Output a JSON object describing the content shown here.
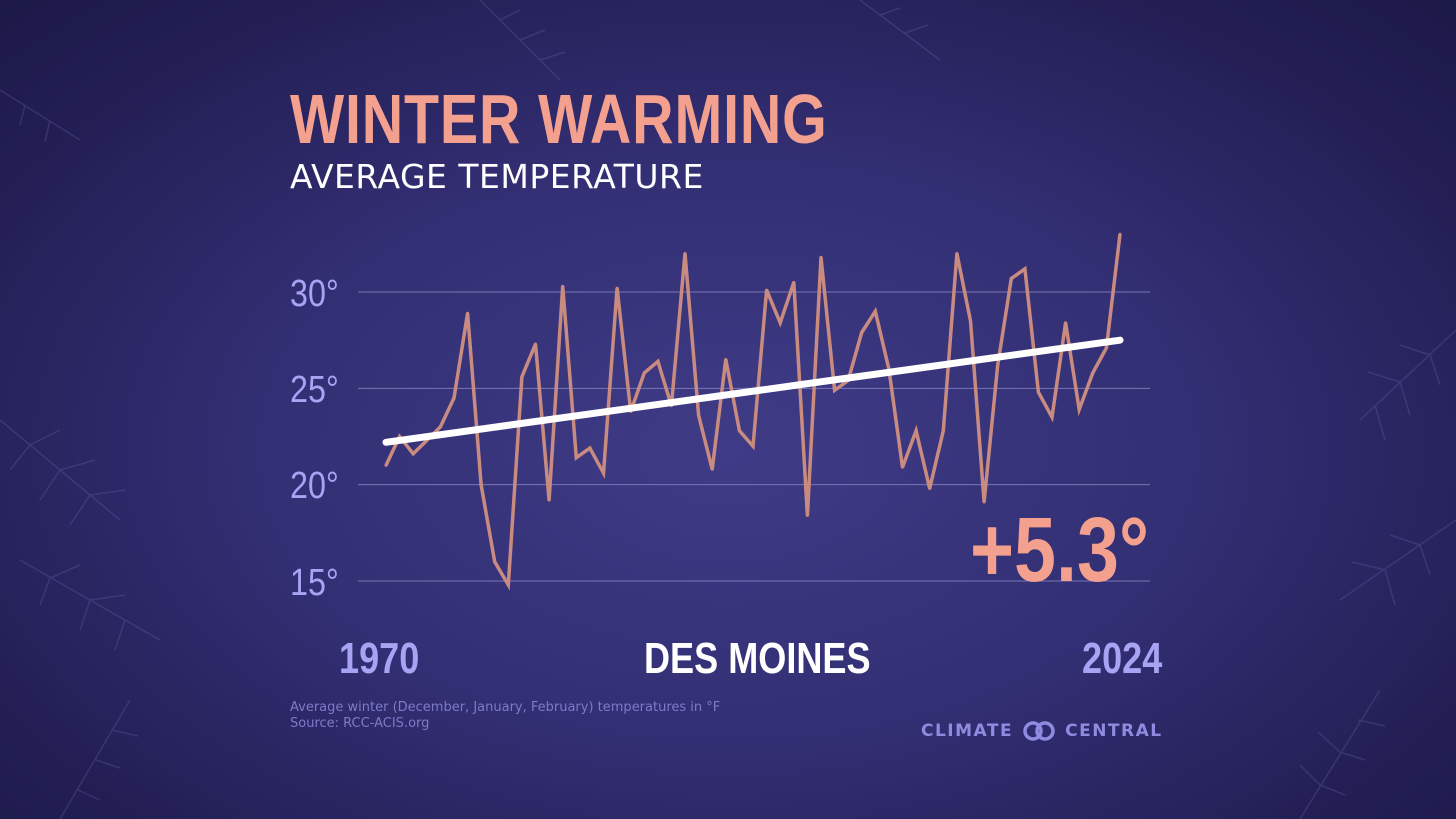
{
  "header": {
    "title": "WINTER WARMING",
    "subtitle": "AVERAGE TEMPERATURE"
  },
  "location": "DES MOINES",
  "change_label": "+5.3°",
  "footnote": {
    "line1": "Average winter (December, January, February) temperatures in °F",
    "line2": "Source: RCC-ACIS.org"
  },
  "brand": {
    "left": "CLIMATE",
    "right": "CENTRAL"
  },
  "colors": {
    "background": "#332f74",
    "title": "#f4a08f",
    "series_line": "#c98b80",
    "trend_line": "#ffffff",
    "axis_text": "#a7a4f4",
    "gridline": "#8f8cc6"
  },
  "chart_data": {
    "type": "line",
    "title": "WINTER WARMING",
    "subtitle": "AVERAGE TEMPERATURE",
    "x_start_label": "1970",
    "x_end_label": "2024",
    "xlim": [
      1970,
      2024
    ],
    "ylim": [
      15,
      30
    ],
    "y_ticks": [
      30,
      25,
      20,
      15
    ],
    "y_tick_labels": [
      "30°",
      "25°",
      "20°",
      "15°"
    ],
    "grid": true,
    "x": [
      1970,
      1971,
      1972,
      1973,
      1974,
      1975,
      1976,
      1977,
      1978,
      1979,
      1980,
      1981,
      1982,
      1983,
      1984,
      1985,
      1986,
      1987,
      1988,
      1989,
      1990,
      1991,
      1992,
      1993,
      1994,
      1995,
      1996,
      1997,
      1998,
      1999,
      2000,
      2001,
      2002,
      2003,
      2004,
      2005,
      2006,
      2007,
      2008,
      2009,
      2010,
      2011,
      2012,
      2013,
      2014,
      2015,
      2016,
      2017,
      2018,
      2019,
      2020,
      2021,
      2022,
      2023,
      2024
    ],
    "series": [
      {
        "values": [
          21.0,
          22.5,
          21.6,
          22.3,
          23.0,
          24.5,
          28.9,
          20.0,
          16.0,
          14.8,
          25.6,
          27.3,
          19.2,
          30.3,
          21.4,
          21.9,
          20.6,
          30.2,
          23.8,
          25.8,
          26.4,
          24.1,
          32.0,
          23.6,
          20.8,
          26.5,
          22.8,
          22.0,
          30.1,
          28.4,
          30.5,
          18.4,
          31.8,
          24.9,
          25.4,
          27.9,
          29.0,
          26.0,
          20.9,
          22.8,
          19.8,
          22.8,
          32.0,
          28.5,
          19.1,
          26.2,
          30.7,
          31.2,
          24.8,
          23.5,
          28.4,
          23.9,
          25.8,
          27.1,
          33.0
        ]
      }
    ],
    "trend": {
      "start": 22.2,
      "end": 27.5,
      "change": 5.3
    }
  }
}
